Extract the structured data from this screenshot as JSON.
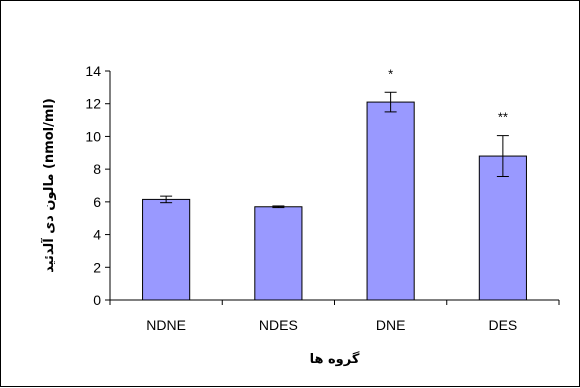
{
  "chart_data": {
    "type": "bar",
    "categories": [
      "NDNE",
      "NDES",
      "DNE",
      "DES"
    ],
    "values": [
      6.15,
      5.7,
      12.1,
      8.8
    ],
    "errors": [
      0.2,
      0.05,
      0.6,
      1.25
    ],
    "significance": [
      "",
      "",
      "*",
      "**"
    ],
    "xlabel": "گروه ها",
    "ylabel": "مالون دی آلدئید (nmol/ml)",
    "ylim": [
      0,
      14
    ],
    "yticks": [
      0,
      2,
      4,
      6,
      8,
      10,
      12,
      14
    ],
    "grid": false,
    "legend": "none",
    "bar_color": "#9999ff"
  }
}
